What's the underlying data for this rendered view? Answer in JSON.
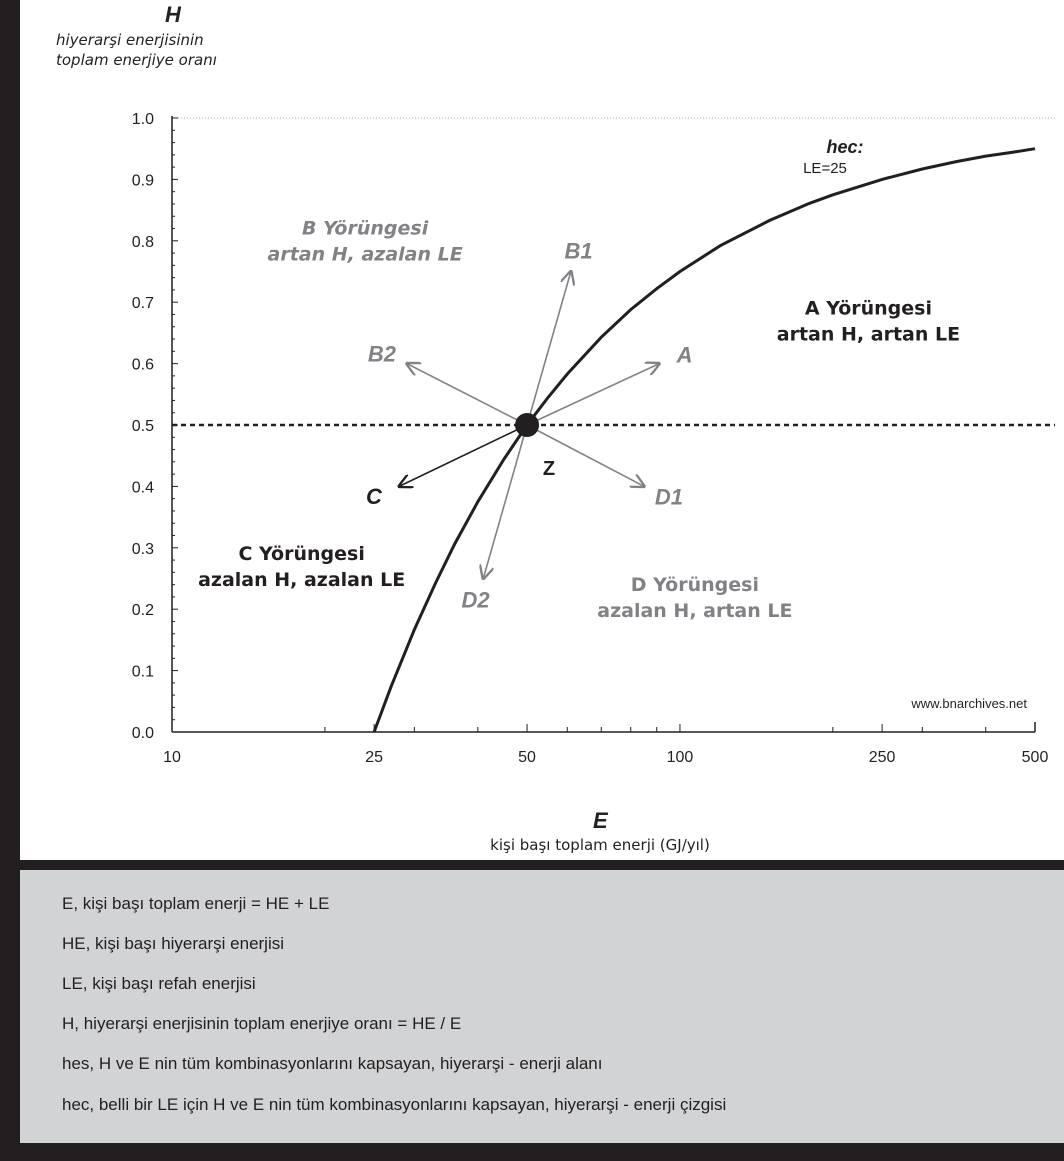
{
  "chart_data": {
    "type": "line",
    "title": "",
    "ylabel": "H",
    "ylabel_sub": [
      "hiyerarşi enerjisinin",
      "toplam enerjiye oranı"
    ],
    "xlabel": "E",
    "xlabel_sub": "kişi başı toplam enerji (GJ/yıl)",
    "x_scale": "log",
    "xlim": [
      10,
      500
    ],
    "ylim": [
      0.0,
      1.0
    ],
    "x_ticks": [
      10,
      25,
      50,
      100,
      250,
      500
    ],
    "x_tick_labels": [
      "10",
      "25",
      "50",
      "100",
      "250",
      "500"
    ],
    "y_ticks": [
      0.0,
      0.1,
      0.2,
      0.3,
      0.4,
      0.5,
      0.6,
      0.7,
      0.8,
      0.9,
      1.0
    ],
    "y_tick_labels": [
      "0.0",
      "0.1",
      "0.2",
      "0.3",
      "0.4",
      "0.5",
      "0.6",
      "0.7",
      "0.8",
      "0.9",
      "1.0"
    ],
    "series": [
      {
        "name": "hec:",
        "name_sub": "LE=25",
        "x": [
          25,
          27,
          30,
          33,
          36,
          40,
          45,
          50,
          55,
          60,
          70,
          80,
          90,
          100,
          120,
          150,
          180,
          200,
          250,
          300,
          350,
          400,
          450,
          500
        ],
        "y": [
          0.0,
          0.074,
          0.167,
          0.242,
          0.306,
          0.375,
          0.444,
          0.5,
          0.545,
          0.583,
          0.643,
          0.688,
          0.722,
          0.75,
          0.792,
          0.833,
          0.861,
          0.875,
          0.9,
          0.917,
          0.929,
          0.938,
          0.944,
          0.95
        ]
      }
    ],
    "reference_line": {
      "y": 0.5,
      "style": "dashed"
    },
    "point": {
      "label": "Z",
      "x": 50,
      "y": 0.5
    },
    "arrows": [
      {
        "label": "B1",
        "to_x": 61,
        "to_y": 0.75,
        "color": "#808285"
      },
      {
        "label": "A",
        "to_x": 91,
        "to_y": 0.6,
        "color": "#808285"
      },
      {
        "label": "B2",
        "to_x": 29,
        "to_y": 0.6,
        "color": "#808285"
      },
      {
        "label": "C",
        "to_x": 28,
        "to_y": 0.4,
        "color": "#231f20"
      },
      {
        "label": "D1",
        "to_x": 85,
        "to_y": 0.4,
        "color": "#808285"
      },
      {
        "label": "D2",
        "to_x": 41,
        "to_y": 0.25,
        "color": "#808285"
      }
    ],
    "annotations": [
      {
        "text": [
          "A Yörüngesi",
          "artan H, artan LE"
        ],
        "x": 235,
        "y": 0.68,
        "color": "#231f20",
        "italic": false
      },
      {
        "text": [
          "B Yörüngesi",
          "artan H, azalan LE"
        ],
        "x": 24,
        "y": 0.81,
        "color": "#808285",
        "italic": true
      },
      {
        "text": [
          "C Yörüngesi",
          "azalan H, azalan LE"
        ],
        "x": 18,
        "y": 0.28,
        "color": "#231f20",
        "italic": false
      },
      {
        "text": [
          "D Yörüngesi",
          "azalan H, artan LE"
        ],
        "x": 107,
        "y": 0.23,
        "color": "#808285",
        "italic": false
      }
    ],
    "watermark": "www.bnarchives.net",
    "grid": false,
    "legend": "none"
  },
  "legend_box": {
    "lines": [
      "E, kişi başı toplam enerji = HE + LE",
      "HE, kişi başı hiyerarşi enerjisi",
      "LE, kişi başı refah enerjisi",
      "H, hiyerarşi enerjisinin toplam enerjiye oranı = HE / E",
      "hes, H ve E nin tüm kombinasyonlarını kapsayan, hiyerarşi - enerji alanı",
      "hec, belli bir LE için H ve E nin tüm kombinasyonlarını kapsayan, hiyerarşi - enerji çizgisi"
    ]
  },
  "colors": {
    "background": "#231f20",
    "chart_bg": "#ffffff",
    "legend_bg": "#d1d3d4",
    "dark": "#231f20",
    "gray": "#808285"
  }
}
